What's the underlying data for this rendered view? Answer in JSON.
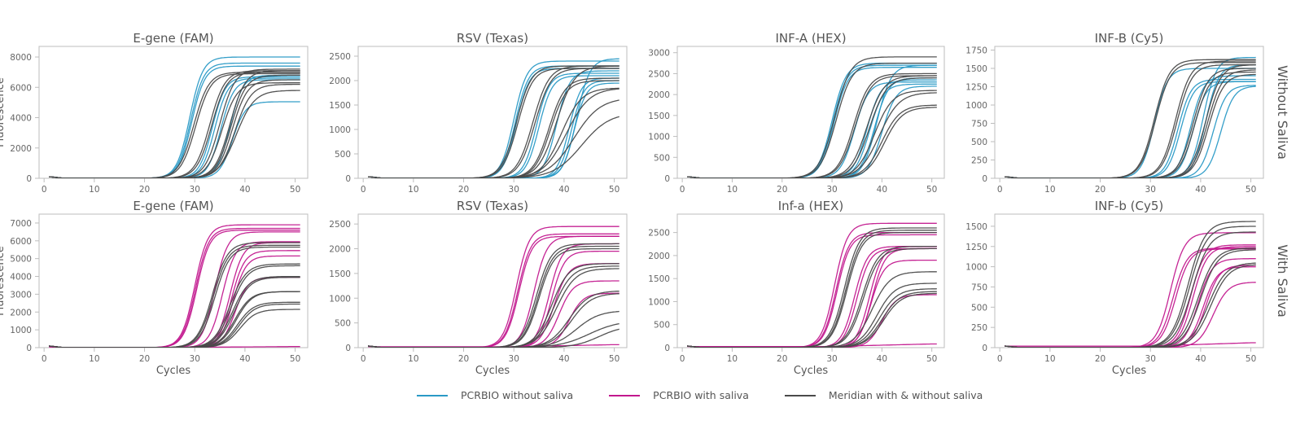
{
  "colors": {
    "pcrbio_without": "#2a9ac6",
    "pcrbio_with": "#c2188e",
    "meridian": "#4a4a4a",
    "axis": "#bdbdbd",
    "text": "#555555"
  },
  "legend": [
    {
      "label": "PCRBIO without saliva",
      "color": "#2a9ac6"
    },
    {
      "label": "PCRBIO with saliva",
      "color": "#c2188e"
    },
    {
      "label": "Meridian with & without saliva",
      "color": "#4a4a4a"
    }
  ],
  "row_labels": [
    "Without Saliva",
    "With Saliva"
  ],
  "chart_data": [
    {
      "type": "line",
      "title": "E-gene (FAM)",
      "row": "Without Saliva",
      "xlabel": "",
      "ylabel": "Fluorescence",
      "xlim": [
        -1,
        52.5
      ],
      "ylim": [
        0,
        8700
      ],
      "xticks": [
        0,
        10,
        20,
        30,
        40,
        50
      ],
      "yticks": [
        0,
        2000,
        4000,
        6000,
        8000
      ],
      "x": "cycles 1-51",
      "series": [
        {
          "name": "PCRBIO without saliva",
          "curves": [
            [
              29.0,
              8000,
              1.3
            ],
            [
              29.2,
              7600,
              1.3
            ],
            [
              29.4,
              7400,
              1.3
            ],
            [
              33.5,
              6700,
              1.3
            ],
            [
              34.0,
              6600,
              1.3
            ],
            [
              35.2,
              6500,
              1.3
            ],
            [
              37.0,
              6800,
              1.3
            ],
            [
              37.5,
              5050,
              1.3
            ]
          ]
        },
        {
          "name": "Meridian with & without saliva",
          "curves": [
            [
              29.8,
              7000,
              1.5
            ],
            [
              30.2,
              6900,
              1.5
            ],
            [
              33.0,
              7100,
              1.5
            ],
            [
              33.4,
              7000,
              1.5
            ],
            [
              35.0,
              7200,
              1.5
            ],
            [
              35.4,
              6300,
              1.5
            ],
            [
              37.0,
              7100,
              1.5
            ],
            [
              37.2,
              6800,
              1.5
            ],
            [
              37.5,
              6500,
              1.5
            ],
            [
              38.0,
              6200,
              1.6
            ],
            [
              38.3,
              5800,
              1.8
            ]
          ]
        }
      ]
    },
    {
      "type": "line",
      "title": "RSV (Texas)",
      "row": "Without Saliva",
      "xlabel": "",
      "ylabel": "",
      "xlim": [
        -1,
        52.5
      ],
      "ylim": [
        0,
        2700
      ],
      "xticks": [
        0,
        10,
        20,
        30,
        40,
        50
      ],
      "yticks": [
        0,
        500,
        1000,
        1500,
        2000,
        2500
      ],
      "series": [
        {
          "name": "PCRBIO without saliva",
          "curves": [
            [
              30.0,
              2400,
              1.3
            ],
            [
              30.3,
              2300,
              1.3
            ],
            [
              30.5,
              2250,
              1.3
            ],
            [
              34.5,
              2150,
              1.3
            ],
            [
              35.0,
              2100,
              1.3
            ],
            [
              38.5,
              2200,
              1.3
            ],
            [
              41.0,
              2050,
              1.2
            ],
            [
              41.5,
              2000,
              1.2
            ],
            [
              42.0,
              1950,
              1.2
            ],
            [
              42.5,
              2450,
              1.3
            ]
          ]
        },
        {
          "name": "Meridian with & without saliva",
          "curves": [
            [
              30.5,
              2300,
              1.5
            ],
            [
              30.8,
              2250,
              1.5
            ],
            [
              33.8,
              2300,
              1.6
            ],
            [
              34.2,
              2250,
              1.6
            ],
            [
              37.0,
              2050,
              1.6
            ],
            [
              37.3,
              2000,
              1.6
            ],
            [
              38.5,
              2300,
              1.8
            ],
            [
              39.5,
              1850,
              2.0
            ],
            [
              40.5,
              1850,
              2.3
            ],
            [
              42.0,
              1650,
              2.6
            ],
            [
              43.5,
              1350,
              2.8
            ]
          ]
        }
      ]
    },
    {
      "type": "line",
      "title": "INF-A (HEX)",
      "row": "Without Saliva",
      "xlabel": "",
      "ylabel": "",
      "xlim": [
        -1,
        52.5
      ],
      "ylim": [
        0,
        3150
      ],
      "xticks": [
        0,
        10,
        20,
        30,
        40,
        50
      ],
      "yticks": [
        0,
        500,
        1000,
        1500,
        2000,
        2500,
        3000
      ],
      "series": [
        {
          "name": "PCRBIO without saliva",
          "curves": [
            [
              30.0,
              2750,
              1.4
            ],
            [
              30.2,
              2700,
              1.4
            ],
            [
              30.4,
              2650,
              1.4
            ],
            [
              34.5,
              2300,
              1.4
            ],
            [
              37.0,
              2350,
              1.4
            ],
            [
              37.5,
              2250,
              1.4
            ],
            [
              38.5,
              2400,
              1.4
            ],
            [
              39.0,
              2700,
              1.4
            ],
            [
              40.0,
              2200,
              1.4
            ]
          ]
        },
        {
          "name": "Meridian with & without saliva",
          "curves": [
            [
              30.5,
              2900,
              1.6
            ],
            [
              30.8,
              2750,
              1.6
            ],
            [
              34.3,
              2500,
              1.6
            ],
            [
              34.6,
              2450,
              1.6
            ],
            [
              37.0,
              2450,
              1.7
            ],
            [
              37.5,
              2400,
              1.7
            ],
            [
              38.5,
              2100,
              1.8
            ],
            [
              39.5,
              2050,
              2.0
            ],
            [
              40.0,
              1750,
              1.8
            ],
            [
              40.5,
              1700,
              1.8
            ]
          ]
        }
      ]
    },
    {
      "type": "line",
      "title": "INF-B (Cy5)",
      "row": "Without Saliva",
      "xlabel": "",
      "ylabel": "",
      "xlim": [
        -1,
        52.5
      ],
      "ylim": [
        0,
        1800
      ],
      "xticks": [
        0,
        10,
        20,
        30,
        40,
        50
      ],
      "yticks": [
        0,
        250,
        500,
        750,
        1000,
        1250,
        1500,
        1750
      ],
      "series": [
        {
          "name": "PCRBIO without saliva",
          "curves": [
            [
              30.8,
              1500,
              1.3
            ],
            [
              35.5,
              1350,
              1.3
            ],
            [
              36.0,
              1320,
              1.3
            ],
            [
              38.0,
              1400,
              1.3
            ],
            [
              38.5,
              1320,
              1.3
            ],
            [
              40.5,
              1650,
              1.3
            ],
            [
              41.0,
              1550,
              1.3
            ],
            [
              42.5,
              1270,
              1.3
            ],
            [
              44.0,
              1260,
              1.3
            ]
          ]
        },
        {
          "name": "Meridian with & without saliva",
          "curves": [
            [
              30.8,
              1620,
              1.5
            ],
            [
              31.0,
              1580,
              1.5
            ],
            [
              35.0,
              1600,
              1.5
            ],
            [
              35.3,
              1550,
              1.5
            ],
            [
              38.5,
              1500,
              1.5
            ],
            [
              38.8,
              1450,
              1.5
            ],
            [
              41.0,
              1550,
              1.5
            ],
            [
              41.3,
              1480,
              1.5
            ],
            [
              41.6,
              1420,
              1.5
            ]
          ]
        }
      ]
    },
    {
      "type": "line",
      "title": "E-gene (FAM)",
      "row": "With Saliva",
      "xlabel": "Cycles",
      "ylabel": "Fluorescence",
      "xlim": [
        -1,
        52.5
      ],
      "ylim": [
        0,
        7500
      ],
      "xticks": [
        0,
        10,
        20,
        30,
        40,
        50
      ],
      "yticks": [
        0,
        1000,
        2000,
        3000,
        4000,
        5000,
        6000,
        7000
      ],
      "series": [
        {
          "name": "PCRBIO with saliva",
          "curves": [
            [
              30.0,
              6900,
              1.3
            ],
            [
              30.2,
              6700,
              1.3
            ],
            [
              30.4,
              6600,
              1.3
            ],
            [
              34.0,
              6500,
              1.3
            ],
            [
              35.5,
              5950,
              1.3
            ],
            [
              37.0,
              5900,
              1.3
            ],
            [
              37.3,
              5450,
              1.3
            ],
            [
              37.6,
              5150,
              1.3
            ],
            [
              38.0,
              3950,
              1.3
            ],
            [
              90,
              60,
              1.0
            ]
          ]
        },
        {
          "name": "Meridian with & without saliva",
          "curves": [
            [
              33.5,
              5900,
              1.5
            ],
            [
              33.7,
              5750,
              1.5
            ],
            [
              34.0,
              5650,
              1.5
            ],
            [
              37.0,
              4700,
              1.6
            ],
            [
              37.3,
              4600,
              1.6
            ],
            [
              37.5,
              4000,
              1.6
            ],
            [
              37.8,
              3950,
              1.6
            ],
            [
              38.0,
              3150,
              1.6
            ],
            [
              38.3,
              3150,
              1.6
            ],
            [
              38.5,
              2550,
              1.6
            ],
            [
              38.8,
              2450,
              1.6
            ],
            [
              39.0,
              2150,
              1.6
            ]
          ]
        }
      ]
    },
    {
      "type": "line",
      "title": "RSV (Texas)",
      "row": "With Saliva",
      "xlabel": "Cycles",
      "ylabel": "",
      "xlim": [
        -1,
        52.5
      ],
      "ylim": [
        0,
        2700
      ],
      "xticks": [
        0,
        10,
        20,
        30,
        40,
        50
      ],
      "yticks": [
        0,
        500,
        1000,
        1500,
        2000,
        2500
      ],
      "series": [
        {
          "name": "PCRBIO with saliva",
          "curves": [
            [
              30.5,
              2450,
              1.3
            ],
            [
              30.8,
              2300,
              1.3
            ],
            [
              31.0,
              2250,
              1.3
            ],
            [
              34.0,
              2250,
              1.3
            ],
            [
              37.0,
              2100,
              1.3
            ],
            [
              37.5,
              1950,
              1.3
            ],
            [
              38.0,
              1700,
              1.4
            ],
            [
              39.0,
              1350,
              1.4
            ],
            [
              41.0,
              1100,
              1.4
            ],
            [
              90,
              60,
              1.0
            ]
          ]
        },
        {
          "name": "Meridian with & without saliva",
          "curves": [
            [
              34.5,
              2100,
              1.5
            ],
            [
              34.8,
              2050,
              1.5
            ],
            [
              35.0,
              2000,
              1.5
            ],
            [
              37.5,
              1700,
              1.7
            ],
            [
              38.0,
              1650,
              1.8
            ],
            [
              38.5,
              1600,
              1.9
            ],
            [
              41.0,
              1150,
              2.0
            ],
            [
              41.5,
              1100,
              2.0
            ],
            [
              42.5,
              750,
              2.3
            ],
            [
              45.0,
              550,
              3.0
            ],
            [
              47.0,
              450,
              2.5
            ]
          ]
        }
      ]
    },
    {
      "type": "line",
      "title": "Inf-a (HEX)",
      "row": "With Saliva",
      "xlabel": "Cycles",
      "ylabel": "",
      "xlim": [
        -1,
        52.5
      ],
      "ylim": [
        0,
        2900
      ],
      "xticks": [
        0,
        10,
        20,
        30,
        40,
        50
      ],
      "yticks": [
        0,
        500,
        1000,
        1500,
        2000,
        2500
      ],
      "series": [
        {
          "name": "PCRBIO with saliva",
          "curves": [
            [
              30.5,
              2700,
              1.3
            ],
            [
              30.8,
              2500,
              1.3
            ],
            [
              31.0,
              2450,
              1.3
            ],
            [
              34.5,
              2200,
              1.3
            ],
            [
              35.0,
              2150,
              1.3
            ],
            [
              37.5,
              2200,
              1.3
            ],
            [
              37.8,
              1900,
              1.3
            ],
            [
              38.0,
              2150,
              1.3
            ],
            [
              40.0,
              1150,
              1.4
            ],
            [
              90,
              80,
              1.0
            ]
          ]
        },
        {
          "name": "Meridian with & without saliva",
          "curves": [
            [
              32.5,
              2600,
              1.5
            ],
            [
              32.8,
              2550,
              1.5
            ],
            [
              33.0,
              2500,
              1.5
            ],
            [
              36.0,
              2200,
              1.6
            ],
            [
              36.3,
              2150,
              1.6
            ],
            [
              38.0,
              1650,
              1.8
            ],
            [
              39.0,
              1400,
              1.8
            ],
            [
              39.5,
              1280,
              1.8
            ],
            [
              40.0,
              1220,
              1.8
            ],
            [
              40.3,
              1180,
              1.8
            ]
          ]
        }
      ]
    },
    {
      "type": "line",
      "title": "INF-b (Cy5)",
      "row": "With Saliva",
      "xlabel": "Cycles",
      "ylabel": "",
      "xlim": [
        -1,
        52.5
      ],
      "ylim": [
        0,
        1650
      ],
      "xticks": [
        0,
        10,
        20,
        30,
        40,
        50
      ],
      "yticks": [
        0,
        250,
        500,
        750,
        1000,
        1250,
        1500
      ],
      "series": [
        {
          "name": "PCRBIO with saliva",
          "curves": [
            [
              34.0,
              1420,
              1.4
            ],
            [
              34.5,
              1230,
              1.4
            ],
            [
              35.0,
              1220,
              1.4
            ],
            [
              38.0,
              1270,
              1.4
            ],
            [
              38.5,
              1250,
              1.4
            ],
            [
              39.5,
              1100,
              1.4
            ],
            [
              40.5,
              1000,
              1.4
            ],
            [
              41.0,
              1020,
              1.4
            ],
            [
              42.5,
              810,
              1.5
            ],
            [
              90,
              60,
              1.0
            ]
          ]
        },
        {
          "name": "Meridian with & without saliva",
          "curves": [
            [
              37.5,
              1560,
              1.7
            ],
            [
              37.8,
              1500,
              1.7
            ],
            [
              38.3,
              1430,
              1.7
            ],
            [
              39.5,
              1230,
              1.7
            ],
            [
              40.0,
              1210,
              1.7
            ],
            [
              41.5,
              1050,
              1.8
            ],
            [
              42.0,
              1030,
              1.8
            ]
          ]
        }
      ]
    }
  ]
}
